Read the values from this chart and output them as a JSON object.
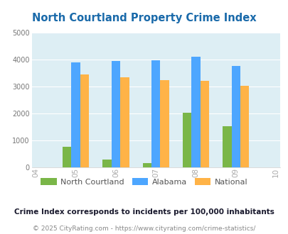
{
  "title": "North Courtland Property Crime Index",
  "years": [
    2005,
    2006,
    2007,
    2008,
    2009
  ],
  "x_ticks_labels": [
    "04",
    "05",
    "06",
    "07",
    "08",
    "09",
    "10"
  ],
  "north_courtland": [
    750,
    300,
    150,
    2020,
    1540
  ],
  "alabama": [
    3900,
    3950,
    3980,
    4100,
    3760
  ],
  "national": [
    3450,
    3350,
    3250,
    3220,
    3040
  ],
  "nc_color": "#7ab648",
  "al_color": "#4da6ff",
  "nat_color": "#ffb347",
  "ylim": [
    0,
    5000
  ],
  "yticks": [
    0,
    1000,
    2000,
    3000,
    4000,
    5000
  ],
  "bg_color": "#ddeef4",
  "title_color": "#1a6aaa",
  "legend_labels": [
    "North Courtland",
    "Alabama",
    "National"
  ],
  "footnote1": "Crime Index corresponds to incidents per 100,000 inhabitants",
  "footnote2": "© 2025 CityRating.com - https://www.cityrating.com/crime-statistics/",
  "footnote1_color": "#1a1a2e",
  "footnote2_color": "#888888",
  "bar_width": 0.22
}
